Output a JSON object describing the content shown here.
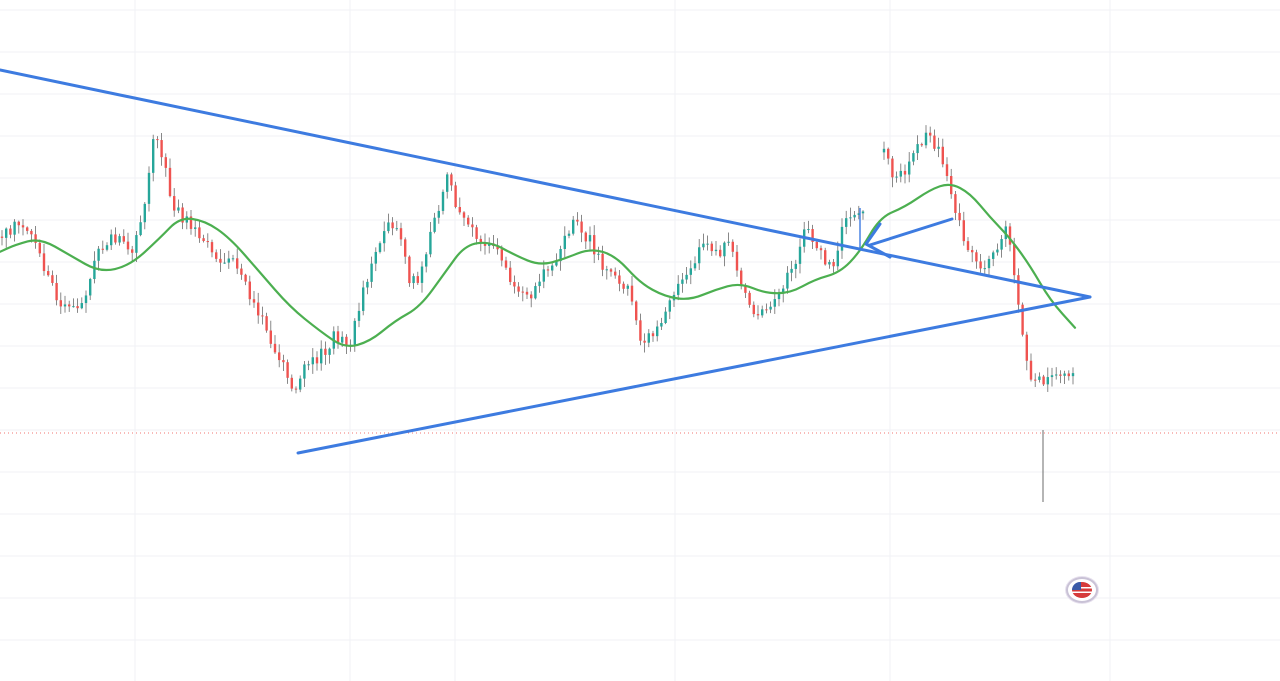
{
  "chart": {
    "background": "#ffffff",
    "grid_color": "#f0f2f5",
    "up_color": "#26a69a",
    "down_color": "#ef5350",
    "wick_color": "#6b6b6b",
    "ma_color": "#4caf50",
    "trendline_color": "#3d7be0",
    "price_line_color": "#ef5350",
    "event_flag_icon": "us-flag-icon"
  },
  "chart_data": {
    "type": "candlestick",
    "grid": true,
    "indicators": [
      "moving-average"
    ],
    "annotations": [
      "descending-trendline",
      "ascending-trendline",
      "arrow",
      "arrow",
      "price-line"
    ],
    "price_path": [
      [
        0,
        0.6
      ],
      [
        10,
        0.62
      ],
      [
        25,
        0.64
      ],
      [
        40,
        0.58
      ],
      [
        55,
        0.46
      ],
      [
        75,
        0.38
      ],
      [
        90,
        0.44
      ],
      [
        105,
        0.58
      ],
      [
        120,
        0.6
      ],
      [
        135,
        0.55
      ],
      [
        148,
        0.68
      ],
      [
        158,
        0.92
      ],
      [
        165,
        0.84
      ],
      [
        180,
        0.68
      ],
      [
        200,
        0.63
      ],
      [
        220,
        0.54
      ],
      [
        240,
        0.53
      ],
      [
        255,
        0.43
      ],
      [
        270,
        0.34
      ],
      [
        285,
        0.25
      ],
      [
        298,
        0.17
      ],
      [
        310,
        0.22
      ],
      [
        325,
        0.26
      ],
      [
        340,
        0.32
      ],
      [
        352,
        0.28
      ],
      [
        365,
        0.42
      ],
      [
        380,
        0.56
      ],
      [
        392,
        0.64
      ],
      [
        402,
        0.64
      ],
      [
        415,
        0.46
      ],
      [
        425,
        0.5
      ],
      [
        440,
        0.66
      ],
      [
        452,
        0.81
      ],
      [
        462,
        0.68
      ],
      [
        475,
        0.62
      ],
      [
        490,
        0.58
      ],
      [
        505,
        0.54
      ],
      [
        520,
        0.46
      ],
      [
        535,
        0.42
      ],
      [
        550,
        0.5
      ],
      [
        565,
        0.56
      ],
      [
        580,
        0.66
      ],
      [
        592,
        0.6
      ],
      [
        608,
        0.52
      ],
      [
        622,
        0.46
      ],
      [
        632,
        0.48
      ],
      [
        645,
        0.28
      ],
      [
        660,
        0.34
      ],
      [
        675,
        0.42
      ],
      [
        690,
        0.48
      ],
      [
        705,
        0.58
      ],
      [
        720,
        0.56
      ],
      [
        735,
        0.58
      ],
      [
        748,
        0.44
      ],
      [
        762,
        0.38
      ],
      [
        778,
        0.4
      ],
      [
        795,
        0.5
      ],
      [
        810,
        0.62
      ],
      [
        825,
        0.56
      ],
      [
        838,
        0.5
      ],
      [
        848,
        0.64
      ],
      [
        858,
        0.68
      ],
      [
        868,
        0.66
      ],
      [
        885,
        0.86
      ],
      [
        900,
        0.76
      ],
      [
        915,
        0.82
      ],
      [
        930,
        0.9
      ],
      [
        942,
        0.86
      ],
      [
        955,
        0.72
      ],
      [
        970,
        0.58
      ],
      [
        985,
        0.5
      ],
      [
        998,
        0.56
      ],
      [
        1010,
        0.64
      ],
      [
        1020,
        0.48
      ],
      [
        1030,
        0.24
      ],
      [
        1040,
        0.18
      ],
      [
        1052,
        0.2
      ],
      [
        1062,
        0.22
      ],
      [
        1075,
        0.2
      ]
    ],
    "moving_average": [
      [
        0,
        0.56
      ],
      [
        15,
        0.58
      ],
      [
        40,
        0.6
      ],
      [
        70,
        0.55
      ],
      [
        100,
        0.5
      ],
      [
        130,
        0.52
      ],
      [
        160,
        0.6
      ],
      [
        180,
        0.66
      ],
      [
        205,
        0.65
      ],
      [
        230,
        0.6
      ],
      [
        260,
        0.5
      ],
      [
        290,
        0.4
      ],
      [
        320,
        0.33
      ],
      [
        345,
        0.28
      ],
      [
        370,
        0.3
      ],
      [
        395,
        0.36
      ],
      [
        420,
        0.4
      ],
      [
        445,
        0.5
      ],
      [
        465,
        0.58
      ],
      [
        490,
        0.59
      ],
      [
        515,
        0.55
      ],
      [
        540,
        0.52
      ],
      [
        565,
        0.54
      ],
      [
        590,
        0.57
      ],
      [
        615,
        0.55
      ],
      [
        640,
        0.47
      ],
      [
        665,
        0.43
      ],
      [
        690,
        0.42
      ],
      [
        715,
        0.45
      ],
      [
        740,
        0.47
      ],
      [
        765,
        0.44
      ],
      [
        790,
        0.44
      ],
      [
        815,
        0.48
      ],
      [
        840,
        0.5
      ],
      [
        860,
        0.56
      ],
      [
        880,
        0.66
      ],
      [
        905,
        0.69
      ],
      [
        930,
        0.74
      ],
      [
        950,
        0.76
      ],
      [
        970,
        0.73
      ],
      [
        990,
        0.66
      ],
      [
        1010,
        0.6
      ],
      [
        1030,
        0.52
      ],
      [
        1050,
        0.42
      ],
      [
        1075,
        0.34
      ]
    ],
    "trendlines": [
      {
        "name": "descending-trendline",
        "from": [
          0,
          1.0
        ],
        "to": [
          1090,
          0.0
        ]
      },
      {
        "name": "ascending-trendline",
        "from": [
          298,
          0.0
        ],
        "to": [
          1090,
          1.0
        ]
      }
    ],
    "arrows": [
      {
        "name": "breakout-arrow",
        "from": [
          880,
          0.62
        ],
        "to": [
          862,
          0.5
        ]
      },
      {
        "name": "retest-arrow",
        "from": [
          952,
          0.9
        ],
        "to": [
          866,
          0.86
        ]
      }
    ],
    "price_line_value": 0.18
  },
  "event": {
    "icon": "us-flag-icon"
  }
}
